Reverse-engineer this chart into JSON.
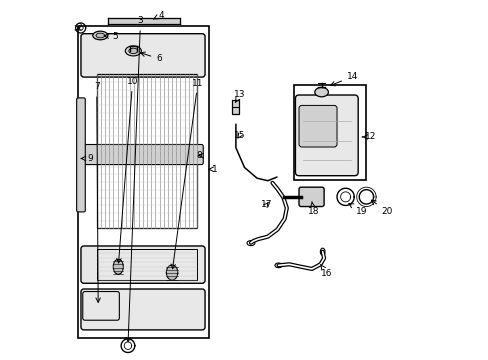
{
  "bg_color": "#ffffff",
  "line_color": "#000000",
  "gray_light": "#cccccc",
  "gray_mid": "#aaaaaa",
  "gray_dark": "#888888",
  "fill_light": "#e8e8e8",
  "fill_mid": "#d0d0d0",
  "fill_dark": "#c0c0c0"
}
